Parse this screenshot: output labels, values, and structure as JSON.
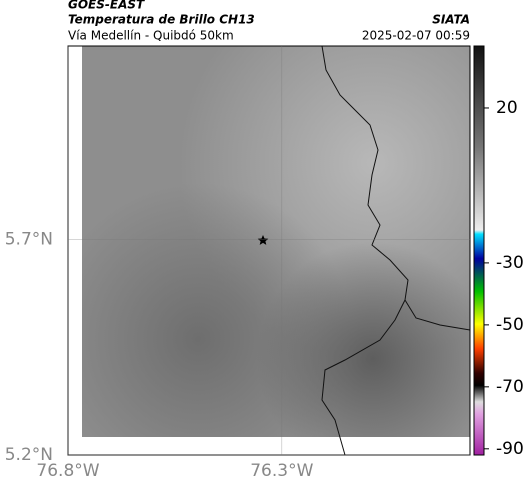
{
  "header": {
    "satellite": "GOES-EAST",
    "product": "Temperatura de Brillo CH13",
    "region": "Vía Medellín - Quibdó 50km",
    "source": "SIATA",
    "timestamp": "2025-02-07 00:59"
  },
  "map": {
    "lonlim": [
      -76.8,
      -75.86
    ],
    "latlim": [
      5.2,
      6.15
    ],
    "lonticks": [
      {
        "value": -76.8,
        "label": "76.8°W"
      },
      {
        "value": -76.3,
        "label": "76.3°W"
      }
    ],
    "latticks": [
      {
        "value": 5.7,
        "label": "5.7°N"
      },
      {
        "value": 5.2,
        "label": "5.2°N"
      }
    ]
  },
  "colorbar": {
    "lim": [
      -92,
      40
    ],
    "ticks": [
      20,
      -30,
      -50,
      -70,
      -90
    ]
  }
}
